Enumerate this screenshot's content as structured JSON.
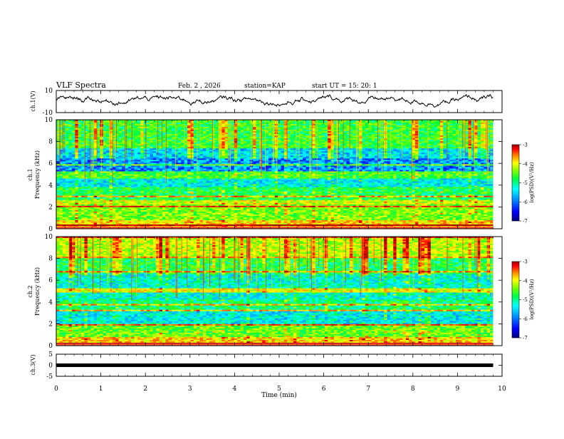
{
  "header": {
    "title": "VLF Spectra",
    "date": "Feb. 2 , 2026",
    "station": "station=KAP",
    "start": "start  UT =   15: 20: 1"
  },
  "chart_data": {
    "type": "spectrogram",
    "xlabel": "Time (min)",
    "x_ticks": [
      "0",
      "1",
      "2",
      "3",
      "4",
      "5",
      "6",
      "7",
      "8",
      "9",
      "10"
    ],
    "xlim": [
      0,
      10
    ],
    "data_end_min": 9.8,
    "panels": [
      {
        "id": "ch1v",
        "type": "line",
        "ylabel": "ch.1(V)",
        "ylim": [
          -10,
          10
        ],
        "y_ticks": [
          "10",
          "-10"
        ]
      },
      {
        "id": "ch1",
        "type": "heatmap",
        "ylabel_top": "ch.1",
        "ylabel": "Frequency (kHz)",
        "ylim": [
          0,
          10
        ],
        "y_ticks": [
          "10",
          "8",
          "6",
          "4",
          "2",
          "0"
        ]
      },
      {
        "id": "ch2",
        "type": "heatmap",
        "ylabel_top": "ch.2",
        "ylabel": "Frequency (kHz)",
        "ylim": [
          0,
          10
        ],
        "y_ticks": [
          "10",
          "8",
          "6",
          "4",
          "2",
          "0"
        ]
      },
      {
        "id": "ch3v",
        "type": "line",
        "ylabel": "ch.3(V)",
        "ylim": [
          -5,
          5
        ],
        "y_ticks": [
          "5",
          "0",
          "-5"
        ],
        "level": 0
      }
    ],
    "colorbar": {
      "label": "log(PSD)(V²/Hz)",
      "ticks": [
        "-3",
        "-4",
        "-5",
        "-6",
        "-7"
      ],
      "range": [
        -7,
        -3
      ],
      "colors": [
        "#000080",
        "#0000ff",
        "#00a0ff",
        "#00ffff",
        "#00ff40",
        "#80ff00",
        "#ffff00",
        "#ff8000",
        "#ff0000",
        "#a00000"
      ]
    },
    "ch1_bands_khz": [
      {
        "lo": 0,
        "hi": 0.8,
        "level": -4.2
      },
      {
        "lo": 0.8,
        "hi": 2.2,
        "level": -4.8
      },
      {
        "lo": 2.2,
        "hi": 2.6,
        "level": -4.5
      },
      {
        "lo": 2.6,
        "hi": 3.8,
        "level": -5.2
      },
      {
        "lo": 3.8,
        "hi": 4.6,
        "level": -5.7
      },
      {
        "lo": 4.6,
        "hi": 5.2,
        "level": -5.0
      },
      {
        "lo": 5.2,
        "hi": 6.4,
        "level": -6.1
      },
      {
        "lo": 6.4,
        "hi": 7.4,
        "level": -5.8
      },
      {
        "lo": 7.4,
        "hi": 10,
        "level": -5.1
      }
    ],
    "ch2_bands_khz": [
      {
        "lo": 0,
        "hi": 0.8,
        "level": -4.2
      },
      {
        "lo": 0.8,
        "hi": 2.0,
        "level": -4.9
      },
      {
        "lo": 2.0,
        "hi": 3.2,
        "level": -5.7
      },
      {
        "lo": 3.2,
        "hi": 4.2,
        "level": -5.3
      },
      {
        "lo": 4.2,
        "hi": 6.6,
        "level": -5.6
      },
      {
        "lo": 6.6,
        "hi": 8.2,
        "level": -5.2
      },
      {
        "lo": 8.2,
        "hi": 10,
        "level": -4.6
      }
    ]
  }
}
